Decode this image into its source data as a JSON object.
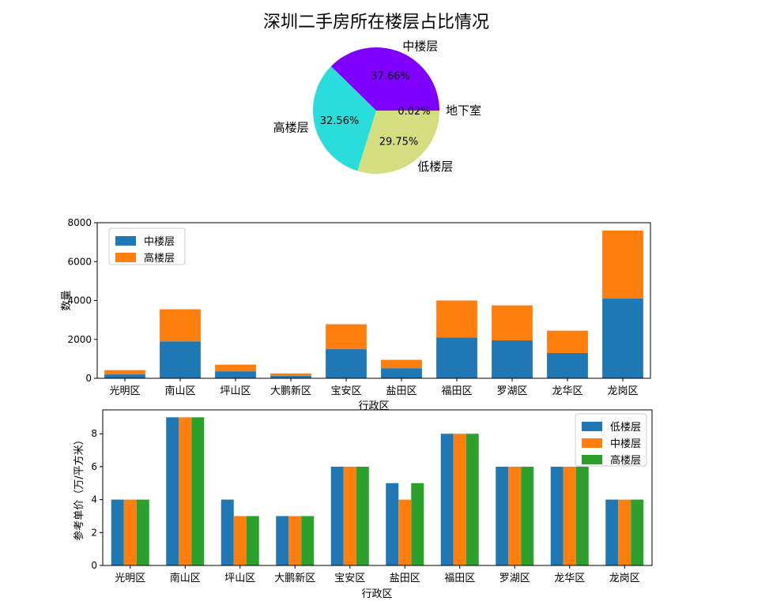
{
  "chart_data": [
    {
      "type": "pie",
      "title": "深圳二手房所在楼层占比情况",
      "slices": [
        {
          "label": "中楼层",
          "value": 37.66,
          "pct_label": "37.66%",
          "color": "#7f00ff"
        },
        {
          "label": "高楼层",
          "value": 32.56,
          "pct_label": "32.56%",
          "color": "#2adddd"
        },
        {
          "label": "低楼层",
          "value": 29.75,
          "pct_label": "29.75%",
          "color": "#d4dd80"
        },
        {
          "label": "地下室",
          "value": 0.02,
          "pct_label": "0.02%",
          "color": "#ff0000"
        }
      ]
    },
    {
      "type": "bar",
      "stacked": true,
      "xlabel": "行政区",
      "ylabel": "数量",
      "ylim": [
        0,
        8000
      ],
      "yticks": [
        0,
        2000,
        4000,
        6000,
        8000
      ],
      "legend_position": "top-left",
      "categories": [
        "光明区",
        "南山区",
        "坪山区",
        "大鹏新区",
        "宝安区",
        "盐田区",
        "福田区",
        "罗湖区",
        "龙华区",
        "龙岗区"
      ],
      "series": [
        {
          "name": "中楼层",
          "color": "#1f77b4",
          "values": [
            200,
            1900,
            360,
            120,
            1500,
            520,
            2100,
            1950,
            1300,
            4100
          ]
        },
        {
          "name": "高楼层",
          "color": "#ff7f0e",
          "values": [
            220,
            1650,
            340,
            130,
            1280,
            430,
            1900,
            1800,
            1150,
            3500
          ]
        }
      ]
    },
    {
      "type": "bar",
      "stacked": false,
      "xlabel": "行政区",
      "ylabel": "参考单价（万/平方米）",
      "ylim": [
        0,
        9.45
      ],
      "yticks": [
        0,
        2,
        4,
        6,
        8
      ],
      "legend_position": "top-right",
      "categories": [
        "光明区",
        "南山区",
        "坪山区",
        "大鹏新区",
        "宝安区",
        "盐田区",
        "福田区",
        "罗湖区",
        "龙华区",
        "龙岗区"
      ],
      "series": [
        {
          "name": "低楼层",
          "color": "#1f77b4",
          "values": [
            4,
            9,
            4,
            3,
            6,
            5,
            8,
            6,
            6,
            4
          ]
        },
        {
          "name": "中楼层",
          "color": "#ff7f0e",
          "values": [
            4,
            9,
            3,
            3,
            6,
            4,
            8,
            6,
            6,
            4
          ]
        },
        {
          "name": "高楼层",
          "color": "#2ca02c",
          "values": [
            4,
            9,
            3,
            3,
            6,
            5,
            8,
            6,
            6,
            4
          ]
        }
      ]
    }
  ]
}
